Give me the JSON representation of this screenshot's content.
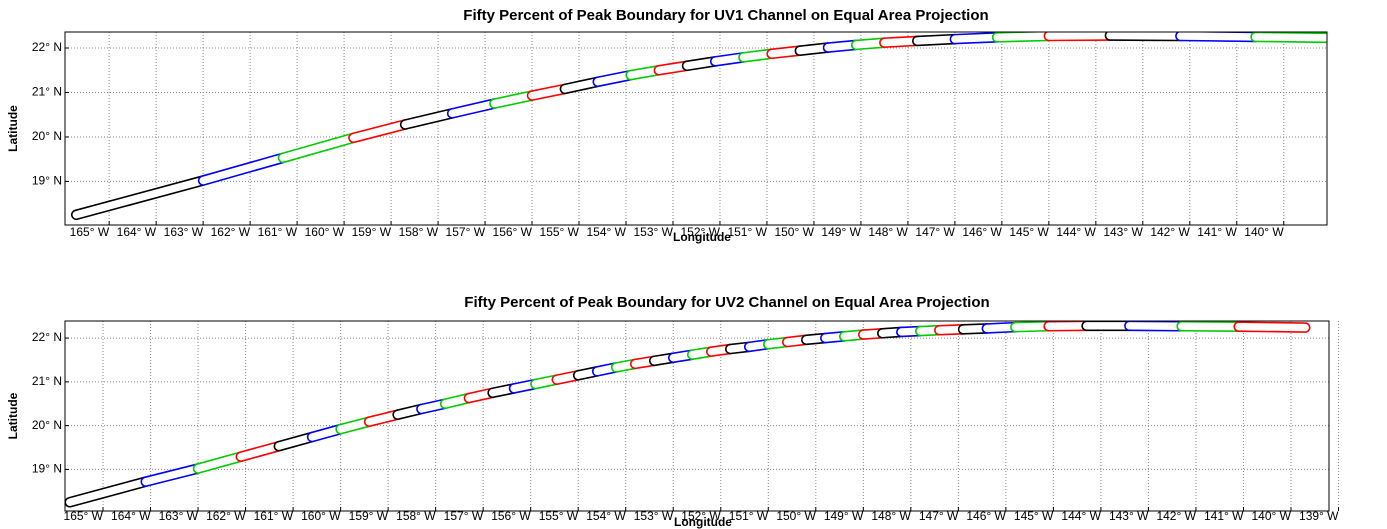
{
  "chart_data": [
    {
      "type": "footprint",
      "title": "Fifty Percent of Peak Boundary for UV1 Channel on Equal Area Projection",
      "xlabel": "Longitude",
      "ylabel": "Latitude",
      "xlim": [
        -165.94,
        -139.08
      ],
      "ylim": [
        18.02,
        22.36
      ],
      "grid": true,
      "colors": [
        "#000000",
        "#0000ff",
        "#00cc00",
        "#ff0000"
      ],
      "xticks": [
        {
          "value": -165,
          "label": "165° W"
        },
        {
          "value": -164,
          "label": "164° W"
        },
        {
          "value": -163,
          "label": "163° W"
        },
        {
          "value": -162,
          "label": "162° W"
        },
        {
          "value": -161,
          "label": "161° W"
        },
        {
          "value": -160,
          "label": "160° W"
        },
        {
          "value": -159,
          "label": "159° W"
        },
        {
          "value": -158,
          "label": "158° W"
        },
        {
          "value": -157,
          "label": "157° W"
        },
        {
          "value": -156,
          "label": "156° W"
        },
        {
          "value": -155,
          "label": "155° W"
        },
        {
          "value": -154,
          "label": "154° W"
        },
        {
          "value": -153,
          "label": "153° W"
        },
        {
          "value": -152,
          "label": "152° W"
        },
        {
          "value": -151,
          "label": "151° W"
        },
        {
          "value": -150,
          "label": "150° W"
        },
        {
          "value": -149,
          "label": "149° W"
        },
        {
          "value": -148,
          "label": "148° W"
        },
        {
          "value": -147,
          "label": "147° W"
        },
        {
          "value": -146,
          "label": "146° W"
        },
        {
          "value": -145,
          "label": "145° W"
        },
        {
          "value": -144,
          "label": "144° W"
        },
        {
          "value": -143,
          "label": "143° W"
        },
        {
          "value": -142,
          "label": "142° W"
        },
        {
          "value": -141,
          "label": "141° W"
        },
        {
          "value": -140,
          "label": "140° W"
        }
      ],
      "yticks": [
        {
          "value": 19,
          "label": "19° N"
        },
        {
          "value": 20,
          "label": "20° N"
        },
        {
          "value": 21,
          "label": "21° N"
        },
        {
          "value": 22,
          "label": "22° N"
        }
      ],
      "footprints": [
        {
          "x": [
            -165.7,
            -163.0
          ],
          "values": [
            18.25,
            19.02
          ]
        },
        {
          "x": [
            -163.0,
            -161.3
          ],
          "values": [
            19.02,
            19.53
          ]
        },
        {
          "x": [
            -161.3,
            -159.8
          ],
          "values": [
            19.53,
            19.98
          ]
        },
        {
          "x": [
            -159.8,
            -158.7
          ],
          "values": [
            19.98,
            20.28
          ]
        },
        {
          "x": [
            -158.7,
            -157.7
          ],
          "values": [
            20.28,
            20.53
          ]
        },
        {
          "x": [
            -157.7,
            -156.8
          ],
          "values": [
            20.53,
            20.75
          ]
        },
        {
          "x": [
            -156.8,
            -156.0
          ],
          "values": [
            20.75,
            20.93
          ]
        },
        {
          "x": [
            -156.0,
            -155.3
          ],
          "values": [
            20.93,
            21.08
          ]
        },
        {
          "x": [
            -155.3,
            -154.6
          ],
          "values": [
            21.08,
            21.24
          ]
        },
        {
          "x": [
            -154.6,
            -153.9
          ],
          "values": [
            21.24,
            21.39
          ]
        },
        {
          "x": [
            -153.9,
            -153.3
          ],
          "values": [
            21.39,
            21.5
          ]
        },
        {
          "x": [
            -153.3,
            -152.7
          ],
          "values": [
            21.5,
            21.6
          ]
        },
        {
          "x": [
            -152.7,
            -152.1
          ],
          "values": [
            21.6,
            21.7
          ]
        },
        {
          "x": [
            -152.1,
            -151.5
          ],
          "values": [
            21.7,
            21.79
          ]
        },
        {
          "x": [
            -151.5,
            -150.9
          ],
          "values": [
            21.79,
            21.87
          ]
        },
        {
          "x": [
            -150.9,
            -150.3
          ],
          "values": [
            21.87,
            21.94
          ]
        },
        {
          "x": [
            -150.3,
            -149.7
          ],
          "values": [
            21.94,
            22.01
          ]
        },
        {
          "x": [
            -149.7,
            -149.1
          ],
          "values": [
            22.01,
            22.07
          ]
        },
        {
          "x": [
            -149.1,
            -148.5
          ],
          "values": [
            22.07,
            22.12
          ]
        },
        {
          "x": [
            -148.5,
            -147.8
          ],
          "values": [
            22.12,
            22.16
          ]
        },
        {
          "x": [
            -147.8,
            -147.0
          ],
          "values": [
            22.16,
            22.2
          ]
        },
        {
          "x": [
            -147.0,
            -146.1
          ],
          "values": [
            22.2,
            22.24
          ]
        },
        {
          "x": [
            -146.1,
            -145.0
          ],
          "values": [
            22.24,
            22.27
          ]
        },
        {
          "x": [
            -145.0,
            -143.7
          ],
          "values": [
            22.27,
            22.28
          ]
        },
        {
          "x": [
            -143.7,
            -142.2
          ],
          "values": [
            22.28,
            22.27
          ]
        },
        {
          "x": [
            -142.2,
            -140.6
          ],
          "values": [
            22.27,
            22.25
          ]
        },
        {
          "x": [
            -140.6,
            -139.1
          ],
          "values": [
            22.25,
            22.23
          ]
        }
      ]
    },
    {
      "type": "footprint",
      "title": "Fifty Percent of Peak Boundary for UV2 Channel on Equal Area Projection",
      "xlabel": "Longitude",
      "ylabel": "Latitude",
      "xlim": [
        -165.8,
        -139.2
      ],
      "ylim": [
        18.05,
        22.39
      ],
      "grid": true,
      "colors": [
        "#000000",
        "#0000ff",
        "#00cc00",
        "#ff0000"
      ],
      "xticks": [
        {
          "value": -165,
          "label": "165° W"
        },
        {
          "value": -164,
          "label": "164° W"
        },
        {
          "value": -163,
          "label": "163° W"
        },
        {
          "value": -162,
          "label": "162° W"
        },
        {
          "value": -161,
          "label": "161° W"
        },
        {
          "value": -160,
          "label": "160° W"
        },
        {
          "value": -159,
          "label": "159° W"
        },
        {
          "value": -158,
          "label": "158° W"
        },
        {
          "value": -157,
          "label": "157° W"
        },
        {
          "value": -156,
          "label": "156° W"
        },
        {
          "value": -155,
          "label": "155° W"
        },
        {
          "value": -154,
          "label": "154° W"
        },
        {
          "value": -153,
          "label": "153° W"
        },
        {
          "value": -152,
          "label": "152° W"
        },
        {
          "value": -151,
          "label": "151° W"
        },
        {
          "value": -150,
          "label": "150° W"
        },
        {
          "value": -149,
          "label": "149° W"
        },
        {
          "value": -148,
          "label": "148° W"
        },
        {
          "value": -147,
          "label": "147° W"
        },
        {
          "value": -146,
          "label": "146° W"
        },
        {
          "value": -145,
          "label": "145° W"
        },
        {
          "value": -144,
          "label": "144° W"
        },
        {
          "value": -143,
          "label": "143° W"
        },
        {
          "value": -142,
          "label": "142° W"
        },
        {
          "value": -141,
          "label": "141° W"
        },
        {
          "value": -140,
          "label": "140° W"
        },
        {
          "value": -139,
          "label": "139° W"
        }
      ],
      "yticks": [
        {
          "value": 19,
          "label": "19° N"
        },
        {
          "value": 20,
          "label": "20° N"
        },
        {
          "value": 21,
          "label": "21° N"
        },
        {
          "value": 22,
          "label": "22° N"
        }
      ],
      "footprints": [
        {
          "x": [
            -165.7,
            -164.1
          ],
          "values": [
            18.25,
            18.72
          ]
        },
        {
          "x": [
            -164.1,
            -163.0
          ],
          "values": [
            18.72,
            19.02
          ]
        },
        {
          "x": [
            -163.0,
            -162.1
          ],
          "values": [
            19.02,
            19.29
          ]
        },
        {
          "x": [
            -162.1,
            -161.3
          ],
          "values": [
            19.29,
            19.53
          ]
        },
        {
          "x": [
            -161.3,
            -160.6
          ],
          "values": [
            19.53,
            19.74
          ]
        },
        {
          "x": [
            -160.6,
            -160.0
          ],
          "values": [
            19.74,
            19.92
          ]
        },
        {
          "x": [
            -160.0,
            -159.4
          ],
          "values": [
            19.92,
            20.09
          ]
        },
        {
          "x": [
            -159.4,
            -158.8
          ],
          "values": [
            20.09,
            20.25
          ]
        },
        {
          "x": [
            -158.8,
            -158.3
          ],
          "values": [
            20.25,
            20.38
          ]
        },
        {
          "x": [
            -158.3,
            -157.8
          ],
          "values": [
            20.38,
            20.5
          ]
        },
        {
          "x": [
            -157.8,
            -157.3
          ],
          "values": [
            20.5,
            20.63
          ]
        },
        {
          "x": [
            -157.3,
            -156.8
          ],
          "values": [
            20.63,
            20.75
          ]
        },
        {
          "x": [
            -156.8,
            -156.35
          ],
          "values": [
            20.75,
            20.85
          ]
        },
        {
          "x": [
            -156.35,
            -155.9
          ],
          "values": [
            20.85,
            20.95
          ]
        },
        {
          "x": [
            -155.9,
            -155.45
          ],
          "values": [
            20.95,
            21.05
          ]
        },
        {
          "x": [
            -155.45,
            -155.0
          ],
          "values": [
            21.05,
            21.15
          ]
        },
        {
          "x": [
            -155.0,
            -154.6
          ],
          "values": [
            21.15,
            21.24
          ]
        },
        {
          "x": [
            -154.6,
            -154.2
          ],
          "values": [
            21.24,
            21.33
          ]
        },
        {
          "x": [
            -154.2,
            -153.8
          ],
          "values": [
            21.33,
            21.41
          ]
        },
        {
          "x": [
            -153.8,
            -153.4
          ],
          "values": [
            21.41,
            21.48
          ]
        },
        {
          "x": [
            -153.4,
            -153.0
          ],
          "values": [
            21.48,
            21.55
          ]
        },
        {
          "x": [
            -153.0,
            -152.6
          ],
          "values": [
            21.55,
            21.62
          ]
        },
        {
          "x": [
            -152.6,
            -152.2
          ],
          "values": [
            21.62,
            21.69
          ]
        },
        {
          "x": [
            -152.2,
            -151.8
          ],
          "values": [
            21.69,
            21.75
          ]
        },
        {
          "x": [
            -151.8,
            -151.4
          ],
          "values": [
            21.75,
            21.8
          ]
        },
        {
          "x": [
            -151.4,
            -151.0
          ],
          "values": [
            21.8,
            21.86
          ]
        },
        {
          "x": [
            -151.0,
            -150.6
          ],
          "values": [
            21.86,
            21.91
          ]
        },
        {
          "x": [
            -150.6,
            -150.2
          ],
          "values": [
            21.91,
            21.96
          ]
        },
        {
          "x": [
            -150.2,
            -149.8
          ],
          "values": [
            21.96,
            22.0
          ]
        },
        {
          "x": [
            -149.8,
            -149.4
          ],
          "values": [
            22.0,
            22.04
          ]
        },
        {
          "x": [
            -149.4,
            -149.0
          ],
          "values": [
            22.04,
            22.08
          ]
        },
        {
          "x": [
            -149.0,
            -148.6
          ],
          "values": [
            22.08,
            22.11
          ]
        },
        {
          "x": [
            -148.6,
            -148.2
          ],
          "values": [
            22.11,
            22.14
          ]
        },
        {
          "x": [
            -148.2,
            -147.8
          ],
          "values": [
            22.14,
            22.16
          ]
        },
        {
          "x": [
            -147.8,
            -147.4
          ],
          "values": [
            22.16,
            22.18
          ]
        },
        {
          "x": [
            -147.4,
            -146.9
          ],
          "values": [
            22.18,
            22.2
          ]
        },
        {
          "x": [
            -146.9,
            -146.4
          ],
          "values": [
            22.2,
            22.22
          ]
        },
        {
          "x": [
            -146.4,
            -145.8
          ],
          "values": [
            22.22,
            22.25
          ]
        },
        {
          "x": [
            -145.8,
            -145.1
          ],
          "values": [
            22.25,
            22.27
          ]
        },
        {
          "x": [
            -145.1,
            -144.3
          ],
          "values": [
            22.27,
            22.28
          ]
        },
        {
          "x": [
            -144.3,
            -143.4
          ],
          "values": [
            22.28,
            22.28
          ]
        },
        {
          "x": [
            -143.4,
            -142.3
          ],
          "values": [
            22.28,
            22.27
          ]
        },
        {
          "x": [
            -142.3,
            -141.1
          ],
          "values": [
            22.27,
            22.26
          ]
        },
        {
          "x": [
            -141.1,
            -139.7
          ],
          "values": [
            22.26,
            22.24
          ]
        }
      ]
    }
  ]
}
